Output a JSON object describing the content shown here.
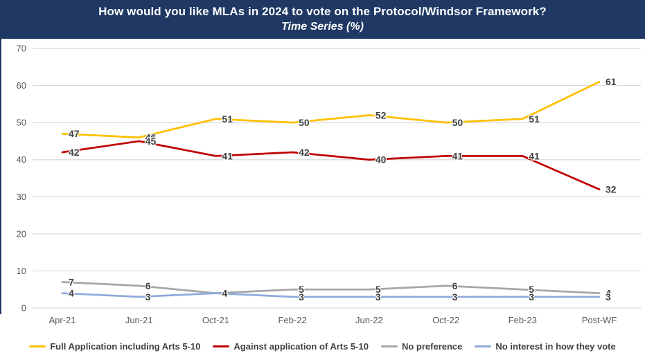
{
  "banner": {
    "title": "How would you like MLAs in 2024 to vote on the Protocol/Windsor Framework?",
    "subtitle": "Time Series (%)",
    "bg_color": "#1F3864",
    "text_color": "#FFFFFF"
  },
  "chart_data": {
    "type": "line",
    "categories": [
      "Apr-21",
      "Jun-21",
      "Oct-21",
      "Feb-22",
      "Jun-22",
      "Oct-22",
      "Feb-23",
      "Post-WF"
    ],
    "series": [
      {
        "name": "Full Application including Arts 5-10",
        "color": "#FFC000",
        "values": [
          47,
          46,
          51,
          50,
          52,
          50,
          51,
          61
        ]
      },
      {
        "name": "Against application of Arts 5-10",
        "color": "#C00000",
        "values": [
          42,
          45,
          41,
          42,
          40,
          41,
          41,
          32
        ]
      },
      {
        "name": "No preference",
        "color": "#A6A6A6",
        "values": [
          7,
          6,
          4,
          5,
          5,
          6,
          5,
          4
        ]
      },
      {
        "name": "No interest in how they vote",
        "color": "#8FAADC",
        "values": [
          4,
          3,
          4,
          3,
          3,
          3,
          3,
          3
        ]
      }
    ],
    "title": "How would you like MLAs in 2024 to vote on the Protocol/Windsor Framework?",
    "subtitle": "Time Series (%)",
    "xlabel": "",
    "ylabel": "",
    "ylim": [
      0,
      70
    ],
    "yticks": [
      0,
      10,
      20,
      30,
      40,
      50,
      60,
      70
    ],
    "grid": true,
    "data_labels": true,
    "legend_position": "bottom",
    "colors": {
      "gridline": "#D9D9D9",
      "axis_text": "#595959",
      "data_label_text": "#404040"
    }
  }
}
